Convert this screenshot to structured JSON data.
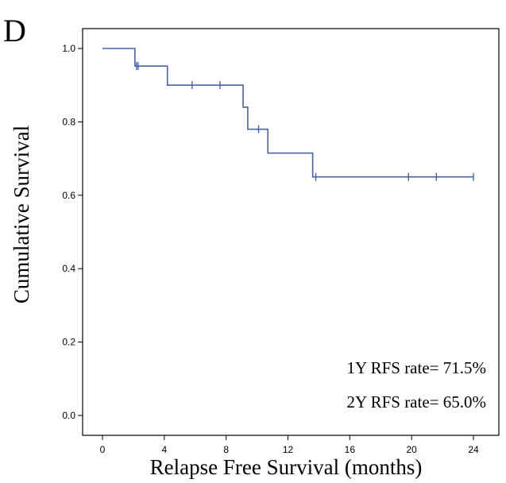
{
  "panel_label": "D",
  "chart_data": {
    "type": "line",
    "subtype": "kaplan-meier-step",
    "title": "",
    "xlabel": "Relapse Free Survival (months)",
    "ylabel": "Cumulative Survival",
    "xlim": [
      0,
      24
    ],
    "ylim": [
      0,
      1.0
    ],
    "xticks": [
      0,
      4,
      8,
      12,
      16,
      20,
      24
    ],
    "yticks": [
      0.0,
      0.2,
      0.4,
      0.6,
      0.8,
      1.0
    ],
    "ytick_labels": [
      "0.0",
      "0.2",
      "0.4",
      "0.6",
      "0.8",
      "1.0"
    ],
    "grid": false,
    "line_color": "#4a62a6",
    "step_points": [
      {
        "x": 0,
        "y": 1.0
      },
      {
        "x": 2.1,
        "y": 0.952
      },
      {
        "x": 4.2,
        "y": 0.9
      },
      {
        "x": 9.1,
        "y": 0.84
      },
      {
        "x": 9.4,
        "y": 0.78
      },
      {
        "x": 10.7,
        "y": 0.715
      },
      {
        "x": 13.6,
        "y": 0.65
      },
      {
        "x": 24.0,
        "y": 0.65
      }
    ],
    "censored": [
      {
        "x": 2.2,
        "y": 0.952
      },
      {
        "x": 2.3,
        "y": 0.952
      },
      {
        "x": 5.8,
        "y": 0.9
      },
      {
        "x": 7.6,
        "y": 0.9
      },
      {
        "x": 10.1,
        "y": 0.78
      },
      {
        "x": 13.8,
        "y": 0.65
      },
      {
        "x": 19.8,
        "y": 0.65
      },
      {
        "x": 21.6,
        "y": 0.65
      },
      {
        "x": 24.0,
        "y": 0.65
      }
    ],
    "annotations": [
      "1Y RFS rate= 71.5%",
      "2Y RFS rate= 65.0%"
    ]
  }
}
